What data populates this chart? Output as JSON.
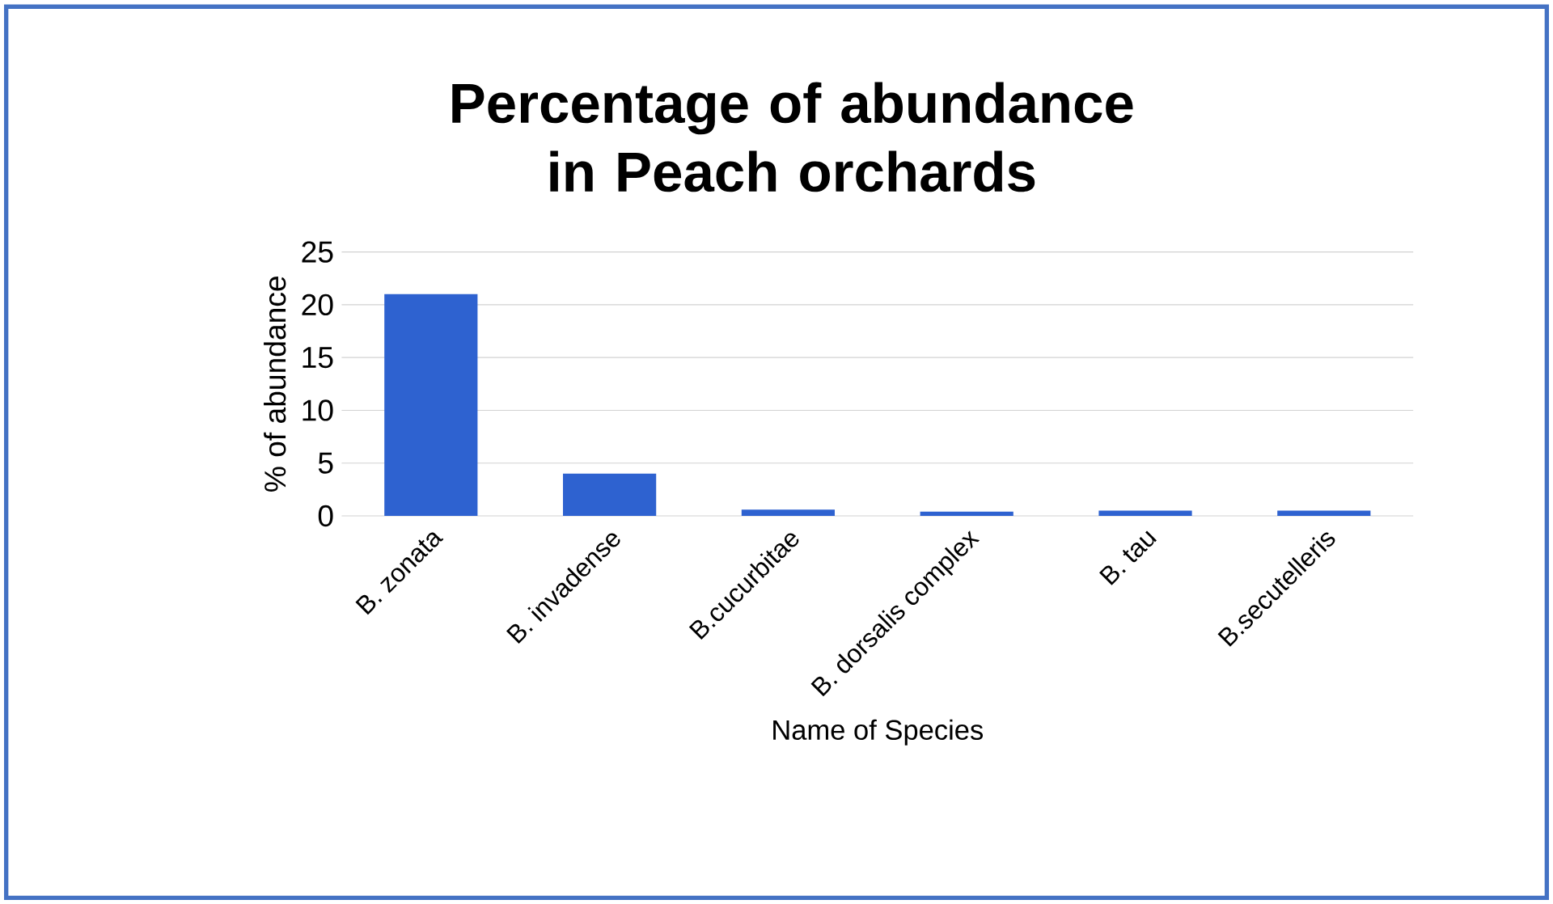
{
  "chart_data": {
    "type": "bar",
    "title": "Percentage of abundance in Peach orchards",
    "xlabel": "Name of Species",
    "ylabel": "% of abundance",
    "categories": [
      "B. zonata",
      "B. invadense",
      "B.cucurbitae",
      "B. dorsalis complex",
      "B. tau",
      "B.secutelleris"
    ],
    "values": [
      21,
      4,
      0.6,
      0.4,
      0.5,
      0.5
    ],
    "color": "#2e62d0",
    "ylim": [
      0,
      25
    ],
    "yticks": [
      0,
      5,
      10,
      15,
      20,
      25
    ],
    "grid": "y"
  }
}
